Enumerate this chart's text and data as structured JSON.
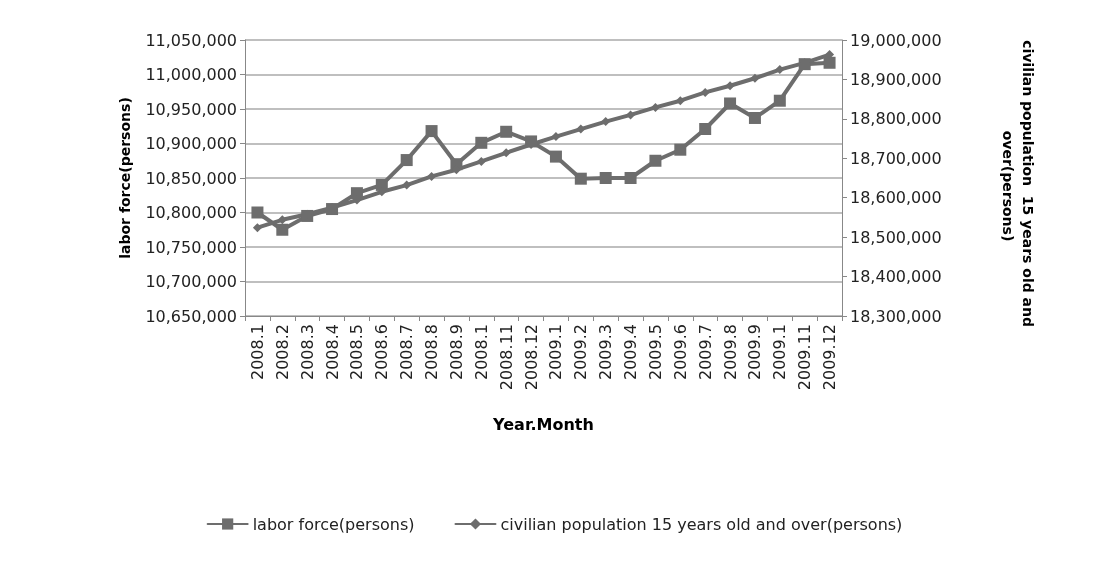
{
  "chart_data": {
    "type": "line",
    "xlabel": "Year.Month",
    "ylabel": "labor force(persons)",
    "y2label": "civilian population  15 years old and over(persons)",
    "categories": [
      "2008.1",
      "2008.2",
      "2008.3",
      "2008.4",
      "2008.5",
      "2008.6",
      "2008.7",
      "2008.8",
      "2008.9",
      "2008.1",
      "2008.11",
      "2008.12",
      "2009.1",
      "2009.2",
      "2009.3",
      "2009.4",
      "2009.5",
      "2009.6",
      "2009.7",
      "2009.8",
      "2009.9",
      "2009.1",
      "2009.11",
      "2009.12"
    ],
    "series": [
      {
        "name": "labor force(persons)",
        "color": "#6d6d6d",
        "marker": "square",
        "values": [
          10800000,
          10775000,
          10795000,
          10805000,
          10828000,
          10840000,
          10876000,
          10918000,
          10870000,
          10901000,
          10917000,
          10903000,
          10881000,
          10849000,
          10850000,
          10850000,
          10875000,
          10891000,
          10921000,
          10958000,
          10937000,
          10962000,
          11015000,
          11017000
        ]
      },
      {
        "name": "civilian population 15 years old and over(persons)",
        "color": "#6d6d6d",
        "marker": "diamond",
        "axis": "y2",
        "values": [
          18524000,
          18544000,
          18558000,
          18575000,
          18594000,
          18615000,
          18632000,
          18654000,
          18671000,
          18692000,
          18714000,
          18735000,
          18755000,
          18774000,
          18793000,
          18810000,
          18829000,
          18846000,
          18867000,
          18884000,
          18903000,
          18925000,
          18942000,
          18963000
        ]
      }
    ],
    "ylim": [
      10650000,
      11050000
    ],
    "yticks": [
      {
        "value": 10650000,
        "label": "10,650,000"
      },
      {
        "value": 10700000,
        "label": "10,700,000"
      },
      {
        "value": 10750000,
        "label": "10,750,000"
      },
      {
        "value": 10800000,
        "label": "10,800,000"
      },
      {
        "value": 10850000,
        "label": "10,850,000"
      },
      {
        "value": 10900000,
        "label": "10,900,000"
      },
      {
        "value": 10950000,
        "label": "10,950,000"
      },
      {
        "value": 11000000,
        "label": "11,000,000"
      },
      {
        "value": 11050000,
        "label": "11,050,000"
      }
    ],
    "y2lim": [
      18300000,
      19000000
    ],
    "y2ticks": [
      {
        "value": 18300000,
        "label": "18,300,000"
      },
      {
        "value": 18400000,
        "label": "18,400,000"
      },
      {
        "value": 18500000,
        "label": "18,500,000"
      },
      {
        "value": 18600000,
        "label": "18,600,000"
      },
      {
        "value": 18700000,
        "label": "18,700,000"
      },
      {
        "value": 18800000,
        "label": "18,800,000"
      },
      {
        "value": 18900000,
        "label": "18,900,000"
      },
      {
        "value": 19000000,
        "label": "19,000,000"
      }
    ],
    "grid": "y",
    "legend": "bottom",
    "line_style": "solid"
  }
}
